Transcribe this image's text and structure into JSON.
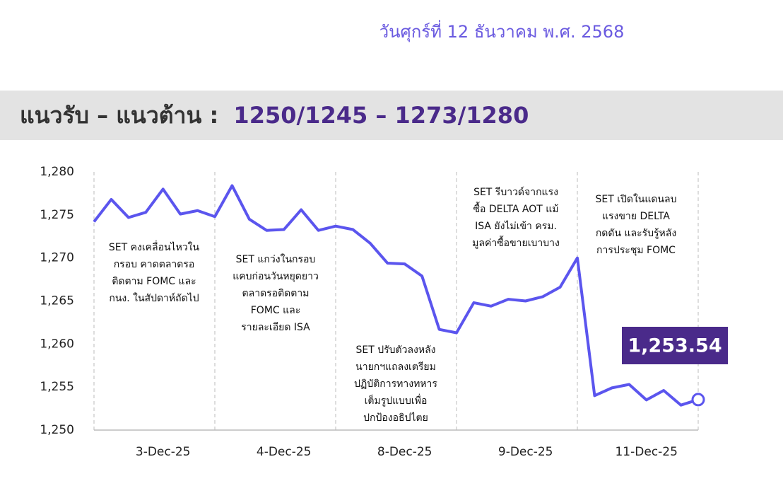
{
  "date": "วันศุกร์ที่ 12 ธันวาคม พ.ศ. 2568",
  "heading": {
    "label": "แนวรับ – แนวต้าน :",
    "value": "1250/1245 – 1273/1280"
  },
  "chart_data": {
    "type": "line",
    "color": "#5b55ee",
    "categories": [
      null,
      null,
      null,
      null,
      "3-Dec-25",
      null,
      null,
      null,
      null,
      null,
      null,
      "4-Dec-25",
      null,
      null,
      null,
      null,
      null,
      null,
      "8-Dec-25",
      null,
      null,
      null,
      null,
      null,
      null,
      "9-Dec-25",
      null,
      null,
      null,
      null,
      null,
      null,
      "11-Dec-25",
      null,
      null,
      null
    ],
    "values": [
      1274.2,
      1276.8,
      1274.7,
      1275.3,
      1278,
      1275.1,
      1275.5,
      1274.8,
      1278.4,
      1274.5,
      1273.2,
      1273.3,
      1275.6,
      1273.2,
      1273.7,
      1273.3,
      1271.7,
      1269.4,
      1269.3,
      1267.9,
      1261.7,
      1261.3,
      1264.8,
      1264.4,
      1265.2,
      1265,
      1265.5,
      1266.6,
      1270,
      1254,
      1254.9,
      1255.3,
      1253.5,
      1254.6,
      1252.9,
      1253.54
    ],
    "value_labels": [
      null,
      null,
      null,
      null,
      null,
      null,
      null,
      null,
      null,
      null,
      null,
      null,
      null,
      null,
      null,
      null,
      null,
      null,
      null,
      null,
      null,
      null,
      null,
      null,
      null,
      null,
      null,
      null,
      null,
      null,
      null,
      null,
      null,
      null,
      null,
      "1,253.54"
    ],
    "ylim": [
      1250,
      1280
    ],
    "yticks": [
      {
        "value": 1250,
        "label": "1,250"
      },
      {
        "value": 1255,
        "label": "1,255"
      },
      {
        "value": 1260,
        "label": "1,260"
      },
      {
        "value": 1265,
        "label": "1,265"
      },
      {
        "value": 1270,
        "label": "1,270"
      },
      {
        "value": 1275,
        "label": "1,275"
      },
      {
        "value": 1280,
        "label": "1,280"
      }
    ],
    "annotations": [
      [
        "SET คงเคลื่อนไหวใน",
        "กรอบ คาดตลาดรอ",
        "ติดตาม FOMC และ",
        "กนง. ในสัปดาห์ถัดไป"
      ],
      [
        "SET แกว่งในกรอบ",
        "แคบก่อนวันหยุดยาว",
        "ตลาดรอติดตาม",
        "FOMC และ",
        "รายละเอียด ISA"
      ],
      [
        "SET ปรับตัวลงหลัง",
        "นายกฯแถลงเตรียม",
        "ปฏิบัติการทางทหาร",
        "เต็มรูปแบบเพื่อ",
        "ปกป้องอธิปไตย"
      ],
      [
        "SET รีบาวด์จากแรง",
        "ซื้อ DELTA AOT แม้",
        "ISA ยังไม่เข้า ครม.",
        "มูลค่าซื้อขายเบาบาง"
      ],
      [
        "SET เปิดในแดนลบ",
        "แรงขาย DELTA",
        "กดดัน และรับรู้หลัง",
        "การประชุม FOMC"
      ]
    ]
  }
}
